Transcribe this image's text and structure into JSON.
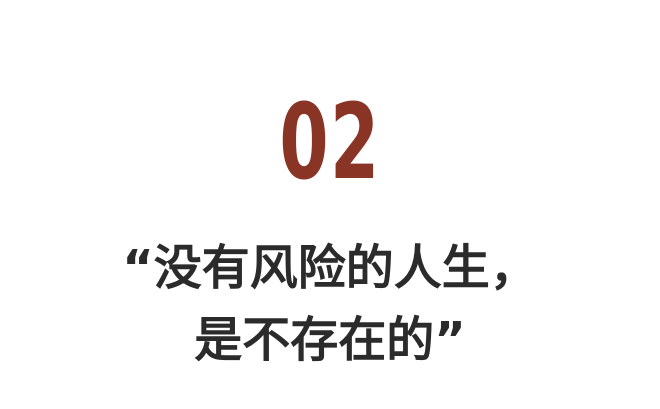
{
  "section": {
    "number": "02",
    "number_color": "#8a3426"
  },
  "headline": {
    "line1": "“没有风险的人生，",
    "line2": "是不存在的”",
    "text_color": "#2b2b2b"
  }
}
